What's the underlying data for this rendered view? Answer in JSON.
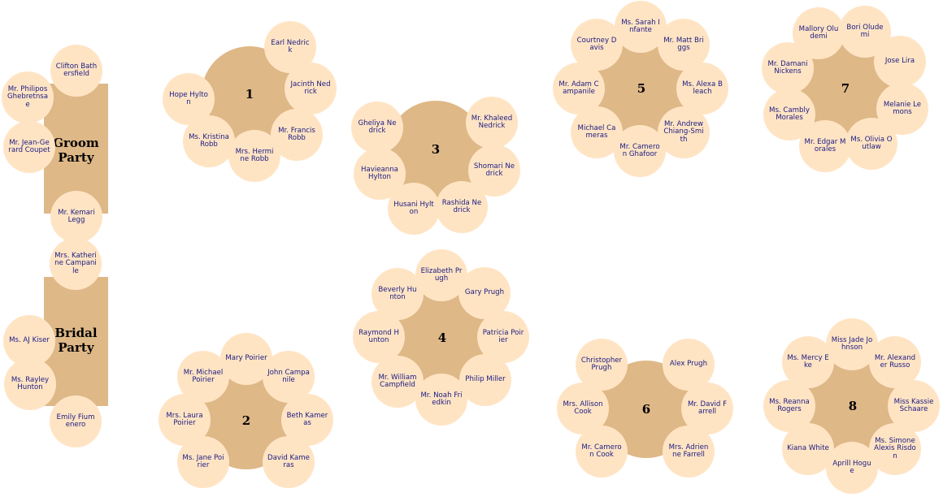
{
  "groom_party": {
    "title": "Groom Party",
    "seats": [
      "Clifton Bathersfield",
      "Mr. Philipos Ghebretnsae",
      "Mr. Jean-Gerard Coupet",
      "Mr. Kemari Legg"
    ]
  },
  "bridal_party": {
    "title": "Bridal Party",
    "seats": [
      "Mrs. Katherine Campanile",
      "Ms. AJ Kiser",
      "Ms. Rayley Hunton",
      "Emily Fiumenero"
    ]
  },
  "tables": [
    {
      "number": "1",
      "seats": [
        "Earl Nedrick",
        "Jacinth Nedrick",
        "Mr. Francis Robb",
        "Mrs. Hermine Robb",
        "Ms. Kristina Robb",
        "Hope Hylton"
      ]
    },
    {
      "number": "2",
      "seats": [
        "Mary Poirier",
        "John Campanile",
        "Beth Kameras",
        "David Kameras",
        "Ms. Jane Poirier",
        "Mrs. Laura Poirier",
        "Mr. Michael Poirier"
      ]
    },
    {
      "number": "3",
      "seats": [
        "Mr. Khaleed Nedrick",
        "Shomari Nedrick",
        "Rashida Nedrick",
        "Husani Hylton",
        "Havieanna Hylton",
        "Gheliya Nedrick"
      ]
    },
    {
      "number": "4",
      "seats": [
        "Elizabeth Prugh",
        "Gary Prugh",
        "Patricia Poirier",
        "Philip Miller",
        "Mr. Noah Friedkin",
        "Mr. William Campfield",
        "Raymond Hunton",
        "Beverly Hunton"
      ]
    },
    {
      "number": "5",
      "seats": [
        "Ms. Sarah Infante",
        "Mr. Matt Briggs",
        "Ms. Alexa Bleach",
        "Mr. Andrew Chiang-Smith",
        "Mr. Cameron Ghafoor",
        "Michael Cameras",
        "Mr. Adam Campanile",
        "Courtney Davis"
      ]
    },
    {
      "number": "6",
      "seats": [
        "Alex Prugh",
        "Mr. David Farrell",
        "Mrs. Adrienne Farrell",
        "Mr. Cameron Cook",
        "Mrs. Allison Cook",
        "Christopher Prugh"
      ]
    },
    {
      "number": "7",
      "seats": [
        "Bori Oludemi",
        "Jose Lira",
        "Melanie Lemons",
        "Ms. Olivia Outlaw",
        "Mr. Edgar Morales",
        "Ms. Cambly Morales",
        "Mr. Damani Nickens",
        "Mallory Oludemi"
      ]
    },
    {
      "number": "8",
      "seats": [
        "Miss Jade Johnson",
        "Mr. Alexander Russo",
        "Miss Kassie Schaare",
        "Ms. Simone Alexis Risdon",
        "Aprill Hogue",
        "Kiana White",
        "Ms. Reanna Rogers",
        "Ms. Mercy Eke"
      ]
    }
  ]
}
